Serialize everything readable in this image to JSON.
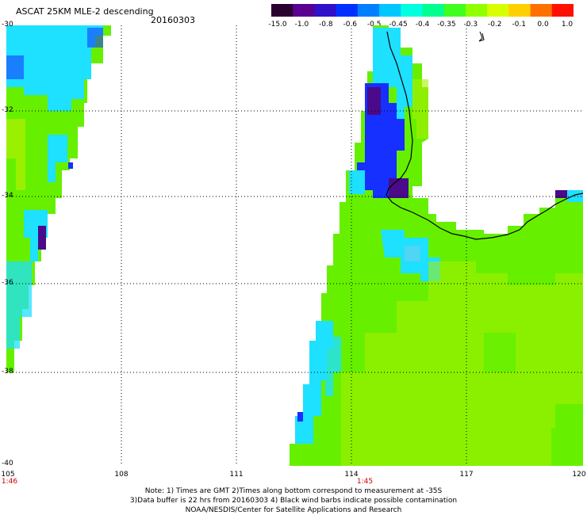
{
  "header": {
    "title": "ASCAT 25KM MLE-2 descending",
    "date": "20160303"
  },
  "colorbar": {
    "ticks": [
      "-15.0",
      "-1.0",
      "-0.8",
      "-0.6",
      "-0.5",
      "-0.45",
      "-0.4",
      "-0.35",
      "-0.3",
      "-0.2",
      "-0.1",
      "0.0",
      "1.0"
    ],
    "colors": [
      "#2a0030",
      "#5a0090",
      "#3010c8",
      "#0030ff",
      "#0080ff",
      "#00c8ff",
      "#00ffe0",
      "#00ff90",
      "#40ff20",
      "#90ff00",
      "#d8ff00",
      "#ffd000",
      "#ff7000",
      "#ff1000"
    ]
  },
  "map": {
    "lat_labels": [
      "-30",
      "-32",
      "-34",
      "-36",
      "-38",
      "-40"
    ],
    "lon_labels": [
      "105",
      "108",
      "111",
      "114",
      "117",
      "120"
    ],
    "time_labels": [
      "1:46",
      "1:45"
    ],
    "colors": {
      "land": "#ffffff",
      "coast": "#000000",
      "purple": "#4a0a8a",
      "blue": "#1530ff",
      "cyan": "#1ee0ff",
      "green": "#66f000",
      "yellowgreen": "#a8f000",
      "grid": "#000000"
    }
  },
  "notes": {
    "line1": "Note: 1) Times are GMT 2)Times along bottom correspond to measurement at -35S",
    "line2": "3)Data buffer is 22 hrs from 20160303 4) Black wind barbs indicate possible contamination",
    "line3": "NOAA/NESDIS/Center for Satellite Applications and Research"
  }
}
